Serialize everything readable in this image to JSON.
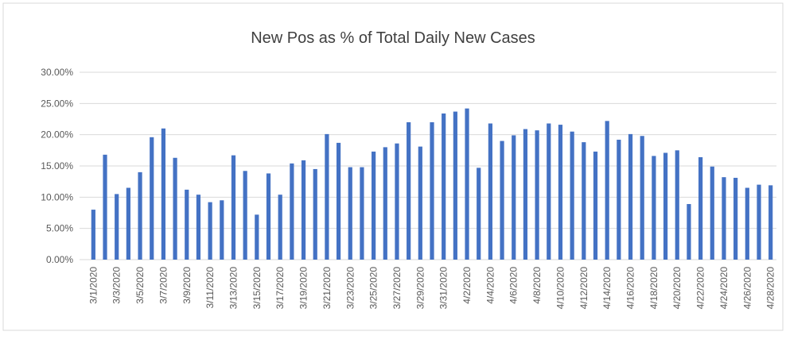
{
  "chart_data": {
    "type": "bar",
    "title": "New Pos as % of Total Daily New Cases",
    "categories": [
      "3/1/2020",
      null,
      "3/3/2020",
      null,
      "3/5/2020",
      null,
      "3/7/2020",
      null,
      "3/9/2020",
      null,
      "3/11/2020",
      null,
      "3/13/2020",
      null,
      "3/15/2020",
      null,
      "3/17/2020",
      null,
      "3/19/2020",
      null,
      "3/21/2020",
      null,
      "3/23/2020",
      null,
      "3/25/2020",
      null,
      "3/27/2020",
      null,
      "3/29/2020",
      null,
      "3/31/2020",
      null,
      "4/2/2020",
      null,
      "4/4/2020",
      null,
      "4/6/2020",
      null,
      "4/8/2020",
      null,
      "4/10/2020",
      null,
      "4/12/2020",
      null,
      "4/14/2020",
      null,
      "4/16/2020",
      null,
      "4/18/2020",
      null,
      "4/20/2020",
      null,
      "4/22/2020",
      null,
      "4/24/2020",
      null,
      "4/26/2020",
      null,
      "4/28/2020"
    ],
    "values": [
      8.0,
      16.8,
      10.5,
      11.5,
      14.0,
      19.6,
      21.0,
      16.3,
      11.2,
      10.4,
      9.2,
      9.5,
      16.7,
      14.2,
      7.2,
      13.8,
      10.4,
      15.4,
      15.9,
      14.5,
      20.1,
      18.7,
      14.8,
      14.8,
      17.3,
      18.0,
      18.6,
      22.0,
      18.1,
      22.0,
      23.4,
      23.7,
      24.2,
      14.7,
      21.8,
      19.0,
      19.9,
      20.9,
      20.7,
      21.8,
      21.6,
      20.5,
      18.8,
      17.3,
      22.2,
      19.2,
      20.1,
      19.8,
      16.6,
      17.1,
      17.5,
      8.9,
      16.4,
      14.9,
      13.2,
      13.1,
      11.5,
      12.0,
      11.9
    ],
    "color": "#4472c4",
    "ylim": [
      0,
      30
    ],
    "yticks": [
      {
        "value": 0,
        "label": "0.00%"
      },
      {
        "value": 5,
        "label": "5.00%"
      },
      {
        "value": 10,
        "label": "10.00%"
      },
      {
        "value": 15,
        "label": "15.00%"
      },
      {
        "value": 20,
        "label": "20.00%"
      },
      {
        "value": 25,
        "label": "25.00%"
      },
      {
        "value": 30,
        "label": "30.00%"
      }
    ],
    "grid": true
  }
}
